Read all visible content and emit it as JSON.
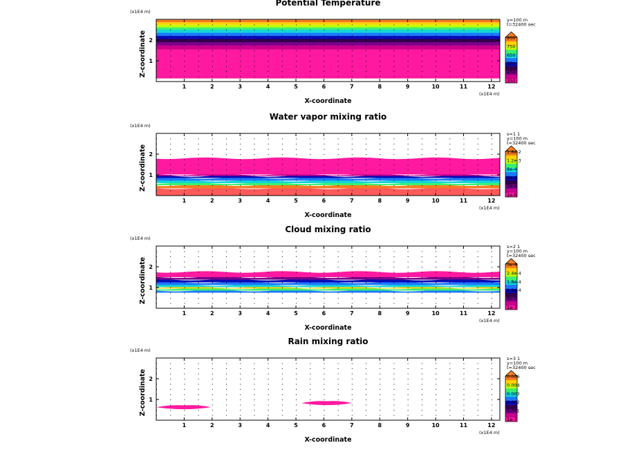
{
  "chart_data": [
    {
      "type": "heatmap",
      "title": "Potential Temperature",
      "xlabel": "X-coordinate",
      "ylabel": "Z-coordinate",
      "x_units": "(x1E4 m)",
      "y_units": "(x1E4 m)",
      "xlim": [
        0,
        12.3
      ],
      "ylim": [
        0,
        3.0
      ],
      "xticks": [
        "1",
        "2",
        "3",
        "4",
        "5",
        "6",
        "7",
        "8",
        "9",
        "10",
        "11",
        "12"
      ],
      "yticks": [
        "1",
        "2"
      ],
      "info": [
        "y=100 m",
        "t=32400 sec"
      ],
      "colorbar": {
        "labels": [
          "800",
          "750",
          "650",
          "550",
          "450",
          "350"
        ],
        "colors": [
          "#f97b1f",
          "#ffd200",
          "#c8ff00",
          "#3cf06e",
          "#12d7d7",
          "#1e78ff",
          "#0a0ab4",
          "#32004b",
          "#78008c",
          "#c8008c",
          "#ff19a0"
        ]
      },
      "bands": [
        {
          "z0": 0.15,
          "z1": 1.55,
          "color": "#ff19a0"
        },
        {
          "z0": 1.55,
          "z1": 1.75,
          "color": "#c8008c"
        },
        {
          "z0": 1.75,
          "z1": 1.9,
          "color": "#78008c"
        },
        {
          "z0": 1.9,
          "z1": 2.05,
          "color": "#32004b"
        },
        {
          "z0": 2.05,
          "z1": 2.2,
          "color": "#0a0ab4"
        },
        {
          "z0": 2.2,
          "z1": 2.35,
          "color": "#1e78ff"
        },
        {
          "z0": 2.35,
          "z1": 2.5,
          "color": "#12d7d7"
        },
        {
          "z0": 2.5,
          "z1": 2.62,
          "color": "#3cf06e"
        },
        {
          "z0": 2.62,
          "z1": 2.74,
          "color": "#c8ff00"
        },
        {
          "z0": 2.74,
          "z1": 2.86,
          "color": "#ffd200"
        },
        {
          "z0": 2.86,
          "z1": 2.98,
          "color": "#f97b1f"
        }
      ]
    },
    {
      "type": "heatmap",
      "title": "Water vapor mixing ratio",
      "xlabel": "X-coordinate",
      "ylabel": "Z-coordinate",
      "x_units": "(x1E4 m)",
      "y_units": "(x1E4 m)",
      "xlim": [
        0,
        12.3
      ],
      "ylim": [
        0,
        3.0
      ],
      "xticks": [
        "1",
        "2",
        "3",
        "4",
        "5",
        "6",
        "7",
        "8",
        "9",
        "10",
        "11",
        "12"
      ],
      "yticks": [
        "1",
        "2"
      ],
      "info": [
        "s=1 1",
        "y=100 m",
        "t=32400 sec"
      ],
      "colorbar": {
        "labels": [
          "1.8e-2",
          "1.2e-3",
          "8e-4",
          "6e-4",
          "3e-4",
          "1e-6"
        ],
        "colors": [
          "#f97b1f",
          "#ffd200",
          "#c8ff00",
          "#3cf06e",
          "#12d7d7",
          "#1e78ff",
          "#0a0ab4",
          "#32004b",
          "#78008c",
          "#c8008c",
          "#ff19a0"
        ]
      },
      "bands": [
        {
          "z0": 0.0,
          "z1": 0.35,
          "color": "#ff5a5a"
        },
        {
          "z0": 0.35,
          "z1": 0.5,
          "color": "#f97b1f"
        },
        {
          "z0": 0.5,
          "z1": 0.6,
          "color": "#3cf06e"
        },
        {
          "z0": 0.6,
          "z1": 0.72,
          "color": "#12d7d7"
        },
        {
          "z0": 0.72,
          "z1": 0.85,
          "color": "#1e78ff"
        },
        {
          "z0": 0.85,
          "z1": 0.95,
          "color": "#0a0ab4"
        },
        {
          "z0": 0.95,
          "z1": 1.02,
          "color": "#c8008c"
        },
        {
          "z0": 1.02,
          "z1": 1.8,
          "color": "#ff19a0"
        }
      ]
    },
    {
      "type": "heatmap",
      "title": "Cloud mixing ratio",
      "xlabel": "X-coordinate",
      "ylabel": "Z-coordinate",
      "x_units": "(x1E4 m)",
      "y_units": "(x1E4 m)",
      "xlim": [
        0,
        12.3
      ],
      "ylim": [
        0,
        3.0
      ],
      "xticks": [
        "1",
        "2",
        "3",
        "4",
        "5",
        "6",
        "7",
        "8",
        "9",
        "10",
        "11",
        "12"
      ],
      "yticks": [
        "1",
        "2"
      ],
      "info": [
        "s=2 1",
        "y=100 m",
        "t=32400 sec"
      ],
      "colorbar": {
        "labels": [
          "3e-4",
          "2.4e-4",
          "1.8e-4",
          "1.2e-4",
          "6e-5",
          "1e-7"
        ],
        "colors": [
          "#f97b1f",
          "#ffd200",
          "#c8ff00",
          "#3cf06e",
          "#12d7d7",
          "#1e78ff",
          "#0a0ab4",
          "#32004b",
          "#78008c",
          "#c8008c",
          "#ff19a0"
        ]
      },
      "bands": [
        {
          "z0": 0.75,
          "z1": 0.85,
          "color": "#1e78ff"
        },
        {
          "z0": 0.85,
          "z1": 0.95,
          "color": "#3cf06e"
        },
        {
          "z0": 0.95,
          "z1": 1.02,
          "color": "#ffd200"
        },
        {
          "z0": 1.02,
          "z1": 1.12,
          "color": "#12d7d7"
        },
        {
          "z0": 1.12,
          "z1": 1.25,
          "color": "#1e78ff"
        },
        {
          "z0": 1.25,
          "z1": 1.38,
          "color": "#0a0ab4"
        },
        {
          "z0": 1.38,
          "z1": 1.5,
          "color": "#78008c"
        },
        {
          "z0": 1.5,
          "z1": 1.75,
          "color": "#ff19a0"
        }
      ]
    },
    {
      "type": "heatmap",
      "title": "Rain mixing ratio",
      "xlabel": "X-coordinate",
      "ylabel": "Z-coordinate",
      "x_units": "(x1E4 m)",
      "y_units": "(x1E4 m)",
      "xlim": [
        0,
        12.3
      ],
      "ylim": [
        0,
        3.0
      ],
      "xticks": [
        "1",
        "2",
        "3",
        "4",
        "5",
        "6",
        "7",
        "8",
        "9",
        "10",
        "11",
        "12"
      ],
      "yticks": [
        "1",
        "2"
      ],
      "info": [
        "s=3 1",
        "y=100 m",
        "t=32400 sec"
      ],
      "colorbar": {
        "labels": [
          "0.006",
          "0.004",
          "0.003",
          "0.002",
          "0.001",
          "1e-7"
        ],
        "colors": [
          "#f97b1f",
          "#ffd200",
          "#c8ff00",
          "#3cf06e",
          "#12d7d7",
          "#1e78ff",
          "#0a0ab4",
          "#32004b",
          "#78008c",
          "#c8008c",
          "#ff19a0"
        ]
      },
      "bands": [],
      "patches": [
        {
          "x0": 0.0,
          "x1": 1.95,
          "z0": 0.5,
          "z1": 0.75,
          "color": "#ff19a0"
        },
        {
          "x0": 5.2,
          "x1": 7.0,
          "z0": 0.7,
          "z1": 0.95,
          "color": "#ff19a0"
        }
      ]
    }
  ]
}
